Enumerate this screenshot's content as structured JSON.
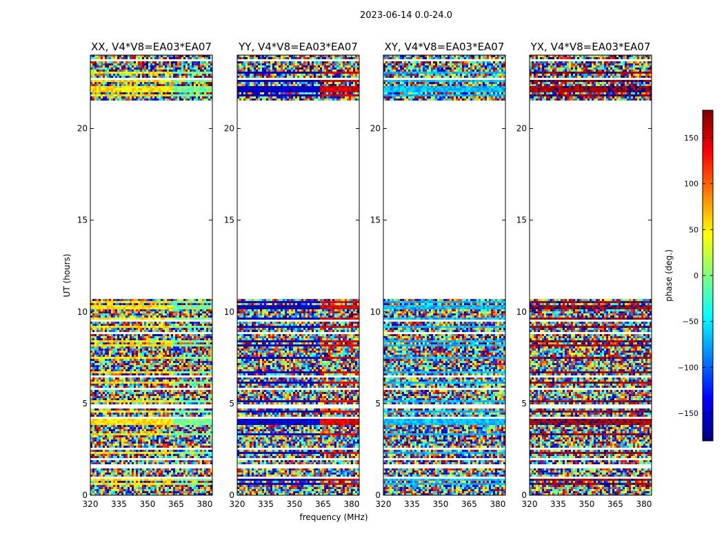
{
  "figure_title": "2023-06-14 0.0-24.0",
  "chart_data": {
    "type": "heatmap",
    "title": "2023-06-14 0.0-24.0",
    "xlabel": "frequency (MHz)",
    "ylabel": "UT (hours)",
    "xlim": [
      320,
      384
    ],
    "ylim": [
      0,
      24
    ],
    "xticks": [
      320,
      335,
      350,
      365,
      380
    ],
    "yticks": [
      0,
      5,
      10,
      15,
      20
    ],
    "colorbar": {
      "label": "phase (deg.)",
      "range": [
        -180,
        180
      ],
      "ticks": [
        -150,
        -100,
        -50,
        0,
        50,
        100,
        150
      ],
      "tick_labels": [
        "−150",
        "−100",
        "−50",
        "0",
        "50",
        "100",
        "150"
      ],
      "colormap": "jet"
    },
    "observed_time_ranges_hours": [
      [
        0.0,
        10.7
      ],
      [
        21.6,
        24.0
      ]
    ],
    "panels": [
      {
        "name": "XX, V4*V8=EA03*EA07",
        "polarization": "XX",
        "coherent_phase_deg": 55,
        "phase_shift_above_mhz": 363,
        "shifted_phase_deg": -5
      },
      {
        "name": "YY, V4*V8=EA03*EA07",
        "polarization": "YY",
        "coherent_phase_deg": -155,
        "phase_shift_above_mhz": 363,
        "shifted_phase_deg": 150
      },
      {
        "name": "XY, V4*V8=EA03*EA07",
        "polarization": "XY",
        "coherent_phase_deg": -70,
        "phase_shift_above_mhz": null,
        "shifted_phase_deg": null
      },
      {
        "name": "YX, V4*V8=EA03*EA07",
        "polarization": "YX",
        "coherent_phase_deg": 170,
        "phase_shift_above_mhz": null,
        "shifted_phase_deg": null
      }
    ]
  }
}
